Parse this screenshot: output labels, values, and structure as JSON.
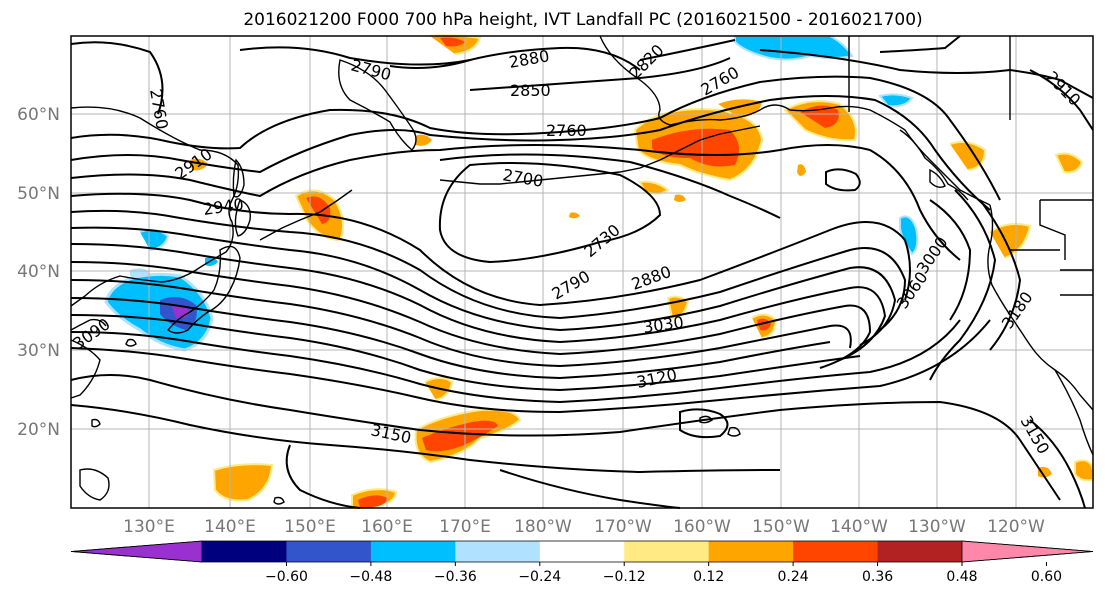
{
  "title": "2016021200 F000 700 hPa height, IVT Landfall PC (2016021500 - 2016021700)",
  "map": {
    "lat_labels": [
      "60°N",
      "50°N",
      "40°N",
      "30°N",
      "20°N"
    ],
    "lon_labels": [
      "130°E",
      "140°E",
      "150°E",
      "160°E",
      "170°E",
      "180°W",
      "170°W",
      "160°W",
      "150°W",
      "140°W",
      "130°W",
      "120°W"
    ],
    "contour_labels": [
      "2760",
      "2790",
      "2880",
      "2850",
      "2820",
      "2760",
      "2910",
      "2940",
      "2850",
      "2760",
      "2700",
      "2730",
      "2790",
      "2880",
      "3030",
      "3120",
      "3000",
      "3060",
      "3090",
      "3150",
      "3150",
      "3180",
      "2910"
    ]
  },
  "colorbar": {
    "tick_labels": [
      "−0.60",
      "−0.48",
      "−0.36",
      "−0.24",
      "−0.12",
      "0.12",
      "0.24",
      "0.36",
      "0.48",
      "0.60"
    ],
    "colors": [
      "#9b30d0",
      "#00007f",
      "#3355cc",
      "#00bfff",
      "#b0e2ff",
      "#ffffff",
      "#ffea84",
      "#ffa500",
      "#ff4500",
      "#b22222",
      "#ff88aa"
    ]
  }
}
